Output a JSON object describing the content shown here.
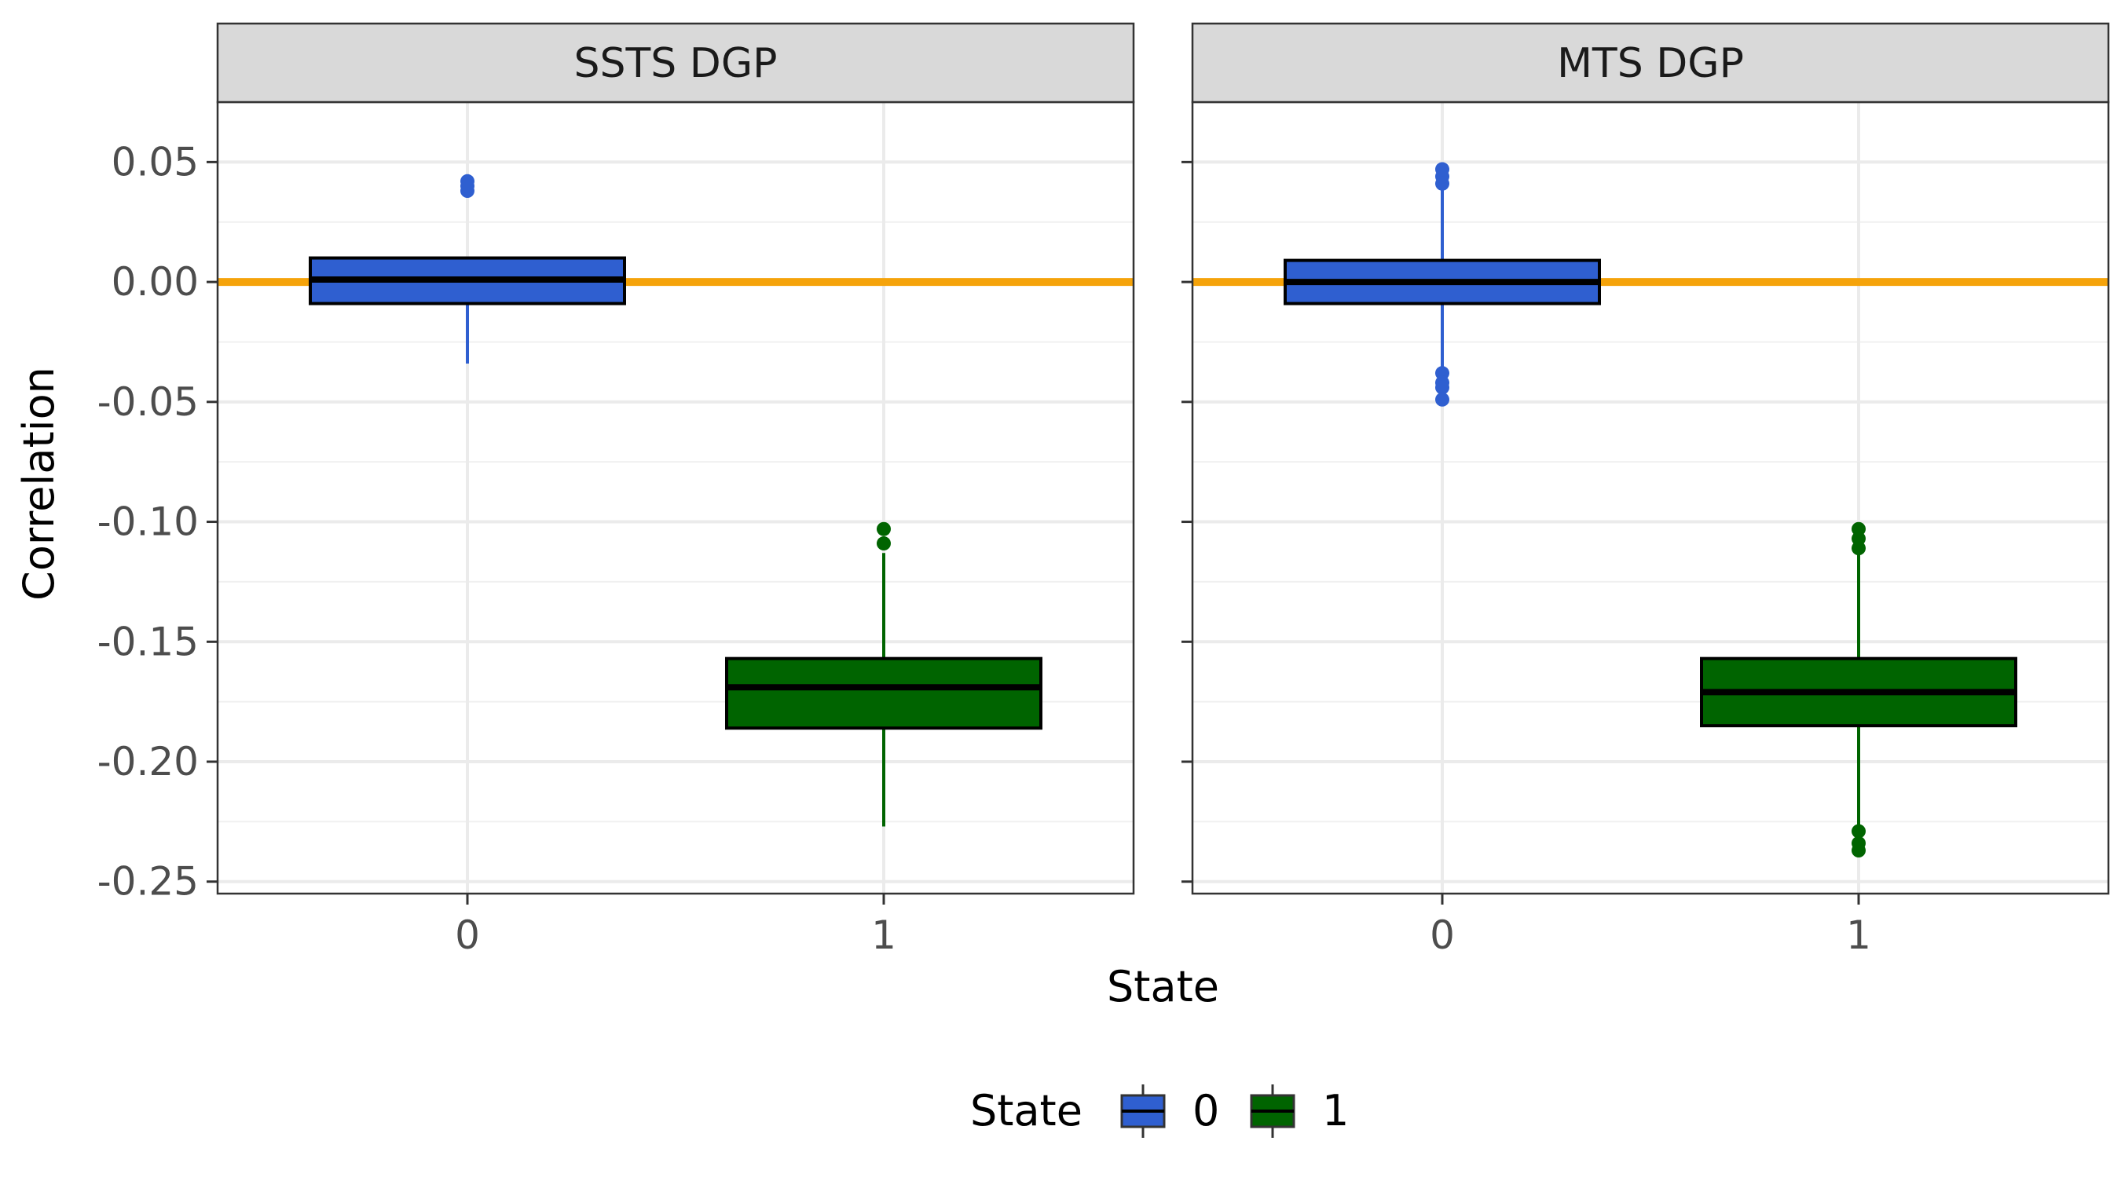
{
  "chart_data": {
    "type": "box",
    "xlabel": "State",
    "ylabel": "Correlation",
    "ylim": [
      -0.255,
      0.075
    ],
    "y_ticks": [
      0.05,
      0.0,
      -0.05,
      -0.1,
      -0.15,
      -0.2,
      -0.25
    ],
    "y_tick_labels": [
      "0.05",
      "0.00",
      "-0.05",
      "-0.10",
      "-0.15",
      "-0.20",
      "-0.25"
    ],
    "categories": [
      "0",
      "1"
    ],
    "reference_line": {
      "y": 0.0,
      "color": "#f5a30a"
    },
    "grid": true,
    "theme": "bw",
    "facets": [
      {
        "label": "SSTS DGP",
        "boxes": [
          {
            "state": "0",
            "color": "#2f5fd0",
            "q1": -0.009,
            "median": 0.001,
            "q3": 0.01,
            "whisker_low": -0.034,
            "whisker_high": 0.01,
            "outliers": [
              0.038,
              0.04,
              0.042
            ]
          },
          {
            "state": "1",
            "color": "#006400",
            "q1": -0.186,
            "median": -0.169,
            "q3": -0.157,
            "whisker_low": -0.227,
            "whisker_high": -0.113,
            "outliers": [
              -0.103,
              -0.109
            ]
          }
        ]
      },
      {
        "label": "MTS DGP",
        "boxes": [
          {
            "state": "0",
            "color": "#2f5fd0",
            "q1": -0.009,
            "median": 0.0,
            "q3": 0.009,
            "whisker_low": -0.037,
            "whisker_high": 0.04,
            "outliers": [
              0.041,
              0.044,
              0.047,
              -0.038,
              -0.042,
              -0.044,
              -0.049
            ]
          },
          {
            "state": "1",
            "color": "#006400",
            "q1": -0.185,
            "median": -0.171,
            "q3": -0.157,
            "whisker_low": -0.228,
            "whisker_high": -0.112,
            "outliers": [
              -0.103,
              -0.107,
              -0.111,
              -0.229,
              -0.234,
              -0.237
            ]
          }
        ]
      }
    ],
    "legend": {
      "title": "State",
      "position": "bottom",
      "entries": [
        {
          "label": "0",
          "color": "#2f5fd0"
        },
        {
          "label": "1",
          "color": "#006400"
        }
      ]
    }
  }
}
